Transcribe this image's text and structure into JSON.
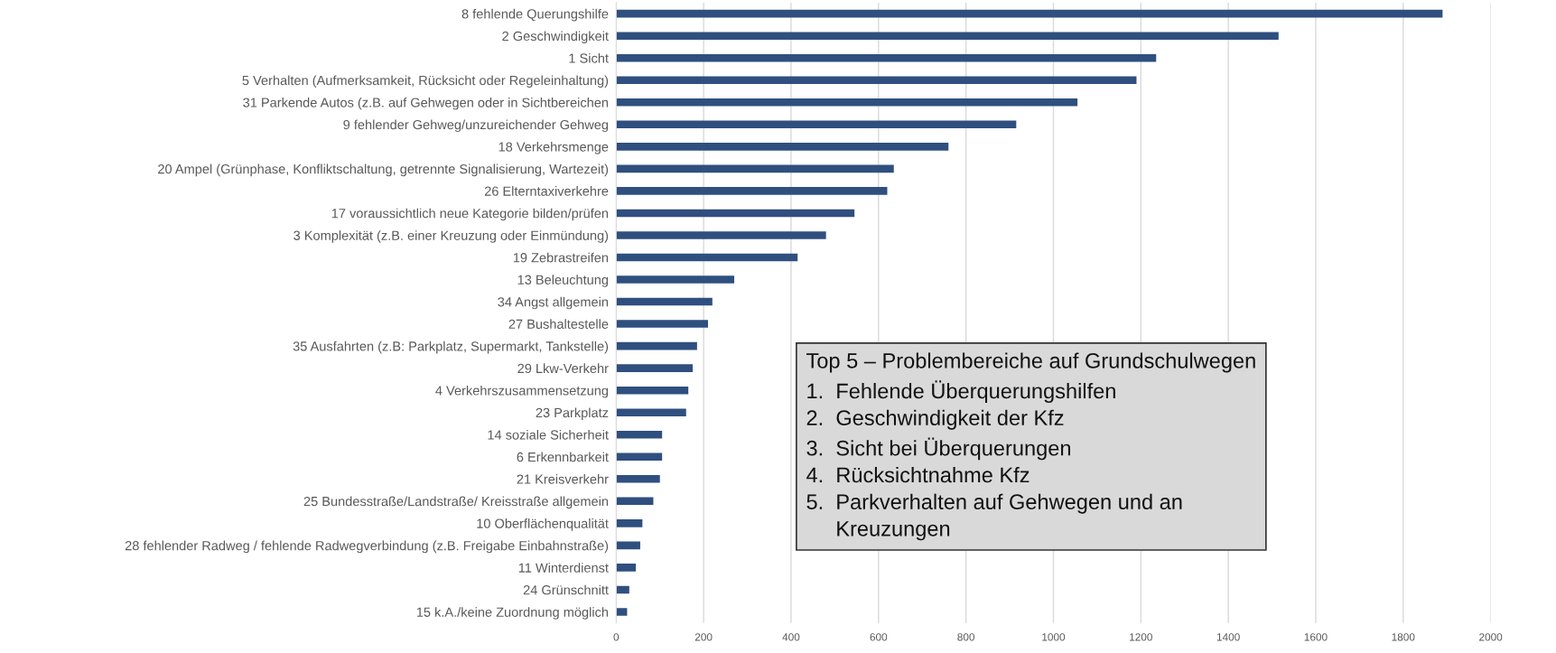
{
  "chart_data": {
    "type": "bar",
    "orientation": "horizontal",
    "color": "#2f4f7f",
    "categories": [
      "8 fehlende Querungshilfe",
      "2 Geschwindigkeit",
      "1 Sicht",
      "5 Verhalten (Aufmerksamkeit, Rücksicht oder Regeleinhaltung)",
      "31 Parkende Autos (z.B. auf Gehwegen oder in Sichtbereichen",
      "9 fehlender Gehweg/unzureichender Gehweg",
      "18 Verkehrsmenge",
      "20 Ampel (Grünphase, Konfliktschaltung, getrennte Signalisierung, Wartezeit)",
      "26 Elterntaxiverkehre",
      "17 voraussichtlich neue Kategorie bilden/prüfen",
      "3 Komplexität (z.B. einer Kreuzung oder Einmündung)",
      "19 Zebrastreifen",
      "13 Beleuchtung",
      "34 Angst allgemein",
      "27 Bushaltestelle",
      "35 Ausfahrten (z.B: Parkplatz, Supermarkt, Tankstelle)",
      "29 Lkw-Verkehr",
      "4 Verkehrszusammensetzung",
      "23 Parkplatz",
      "14 soziale Sicherheit",
      "6 Erkennbarkeit",
      "21 Kreisverkehr",
      "25 Bundesstraße/Landstraße/ Kreisstraße allgemein",
      "10 Oberflächenqualität",
      "28 fehlender Radweg / fehlende Radwegverbindung (z.B. Freigabe Einbahnstraße)",
      "11 Winterdienst",
      "24 Grünschnitt",
      "15 k.A./keine Zuordnung möglich"
    ],
    "values": [
      1890,
      1515,
      1235,
      1190,
      1055,
      915,
      760,
      635,
      620,
      545,
      480,
      415,
      270,
      220,
      210,
      185,
      175,
      165,
      160,
      105,
      105,
      100,
      85,
      60,
      55,
      45,
      30,
      25
    ],
    "xlim": [
      0,
      2000
    ],
    "xticks": [
      0,
      200,
      400,
      600,
      800,
      1000,
      1200,
      1400,
      1600,
      1800,
      2000
    ],
    "grid": "x",
    "annotations": [
      "Top 5 – Problembereiche auf Grundschulwegen\n1.  Fehlende Überquerungshilfen\n2.  Geschwindigkeit der Kfz\n3.  Sicht bei Überquerungen\n4.  Rücksichtnahme Kfz\n5.  Parkverhalten auf Gehwegen und an\n     Kreuzungen"
    ]
  }
}
